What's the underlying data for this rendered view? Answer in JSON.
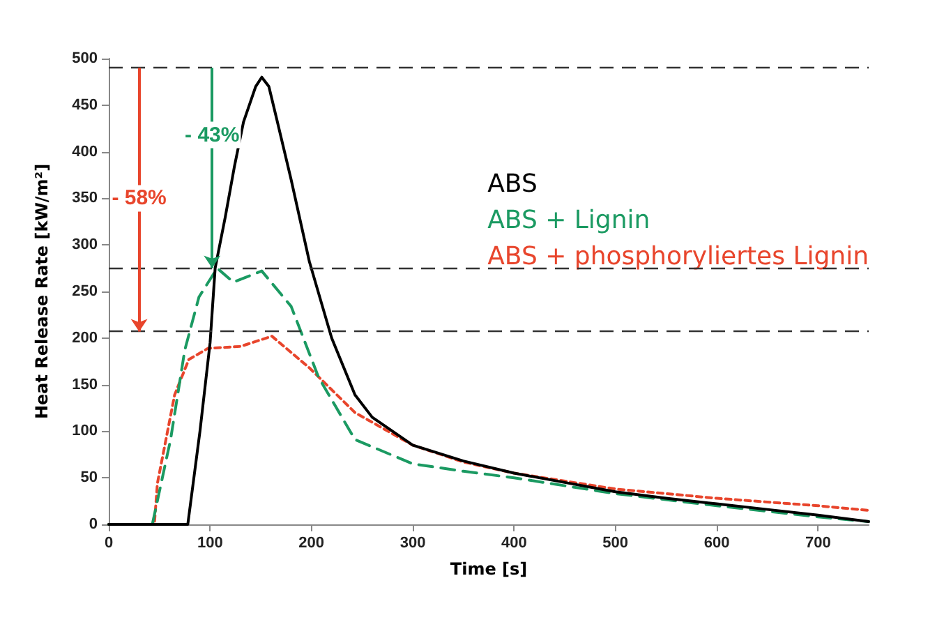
{
  "chart_data": {
    "type": "line",
    "xlabel": "Time [s]",
    "ylabel": "Heat Release Rate [kW/m²]",
    "xlim": [
      0,
      750
    ],
    "xticks": [
      0,
      100,
      200,
      300,
      400,
      500,
      600,
      700
    ],
    "ylim": [
      0,
      500
    ],
    "yticks": [
      0,
      50,
      100,
      150,
      200,
      250,
      300,
      350,
      400,
      450,
      500
    ],
    "grid": false,
    "legend": "top right",
    "marker": "none",
    "series": [
      {
        "name": "ABS",
        "color": "#000000",
        "line_style": "solid",
        "x": [
          0,
          78,
          90,
          100,
          105,
          115,
          124,
          133,
          145,
          151,
          158,
          166,
          180,
          198,
          220,
          243,
          260,
          300,
          350,
          400,
          450,
          500,
          550,
          600,
          650,
          700,
          750
        ],
        "values": [
          0,
          0,
          100,
          195,
          275,
          330,
          384,
          432,
          470,
          480,
          470,
          434,
          370,
          282,
          200,
          139,
          115,
          85,
          68,
          55,
          45,
          35,
          28,
          22,
          16,
          10,
          3
        ]
      },
      {
        "name": "ABS + Lignin",
        "color": "#1b9a62",
        "line_style": "dashed",
        "x": [
          0,
          43,
          61,
          75,
          89,
          107,
          123,
          151,
          180,
          207,
          243,
          300,
          350,
          400,
          500,
          600,
          700,
          750
        ],
        "values": [
          0,
          0,
          91,
          187,
          244,
          275,
          260,
          272,
          234,
          158,
          91,
          65,
          57,
          50,
          33,
          20,
          8,
          3
        ]
      },
      {
        "name": "ABS + phosphoryliertes Lignin",
        "color": "#e8452c",
        "line_style": "dotted",
        "x": [
          0,
          45,
          48,
          65,
          79,
          98,
          130,
          161,
          198,
          243,
          300,
          350,
          400,
          500,
          600,
          700,
          750
        ],
        "values": [
          0,
          0,
          44,
          139,
          177,
          189,
          191,
          202,
          168,
          120,
          85,
          67,
          55,
          38,
          28,
          20,
          15
        ]
      }
    ],
    "ref_lines": [
      {
        "axis": "y",
        "value": 490,
        "color": "#333333",
        "line_style": "dashed"
      },
      {
        "axis": "y",
        "value": 275,
        "color": "#333333",
        "line_style": "dashed"
      },
      {
        "axis": "y",
        "value": 207,
        "color": "#333333",
        "line_style": "dashed"
      }
    ],
    "annotations": [
      {
        "text": "- 43%",
        "x": 102,
        "y": 418
      },
      {
        "text": "- 58%",
        "x": 30,
        "y": 350
      }
    ]
  }
}
